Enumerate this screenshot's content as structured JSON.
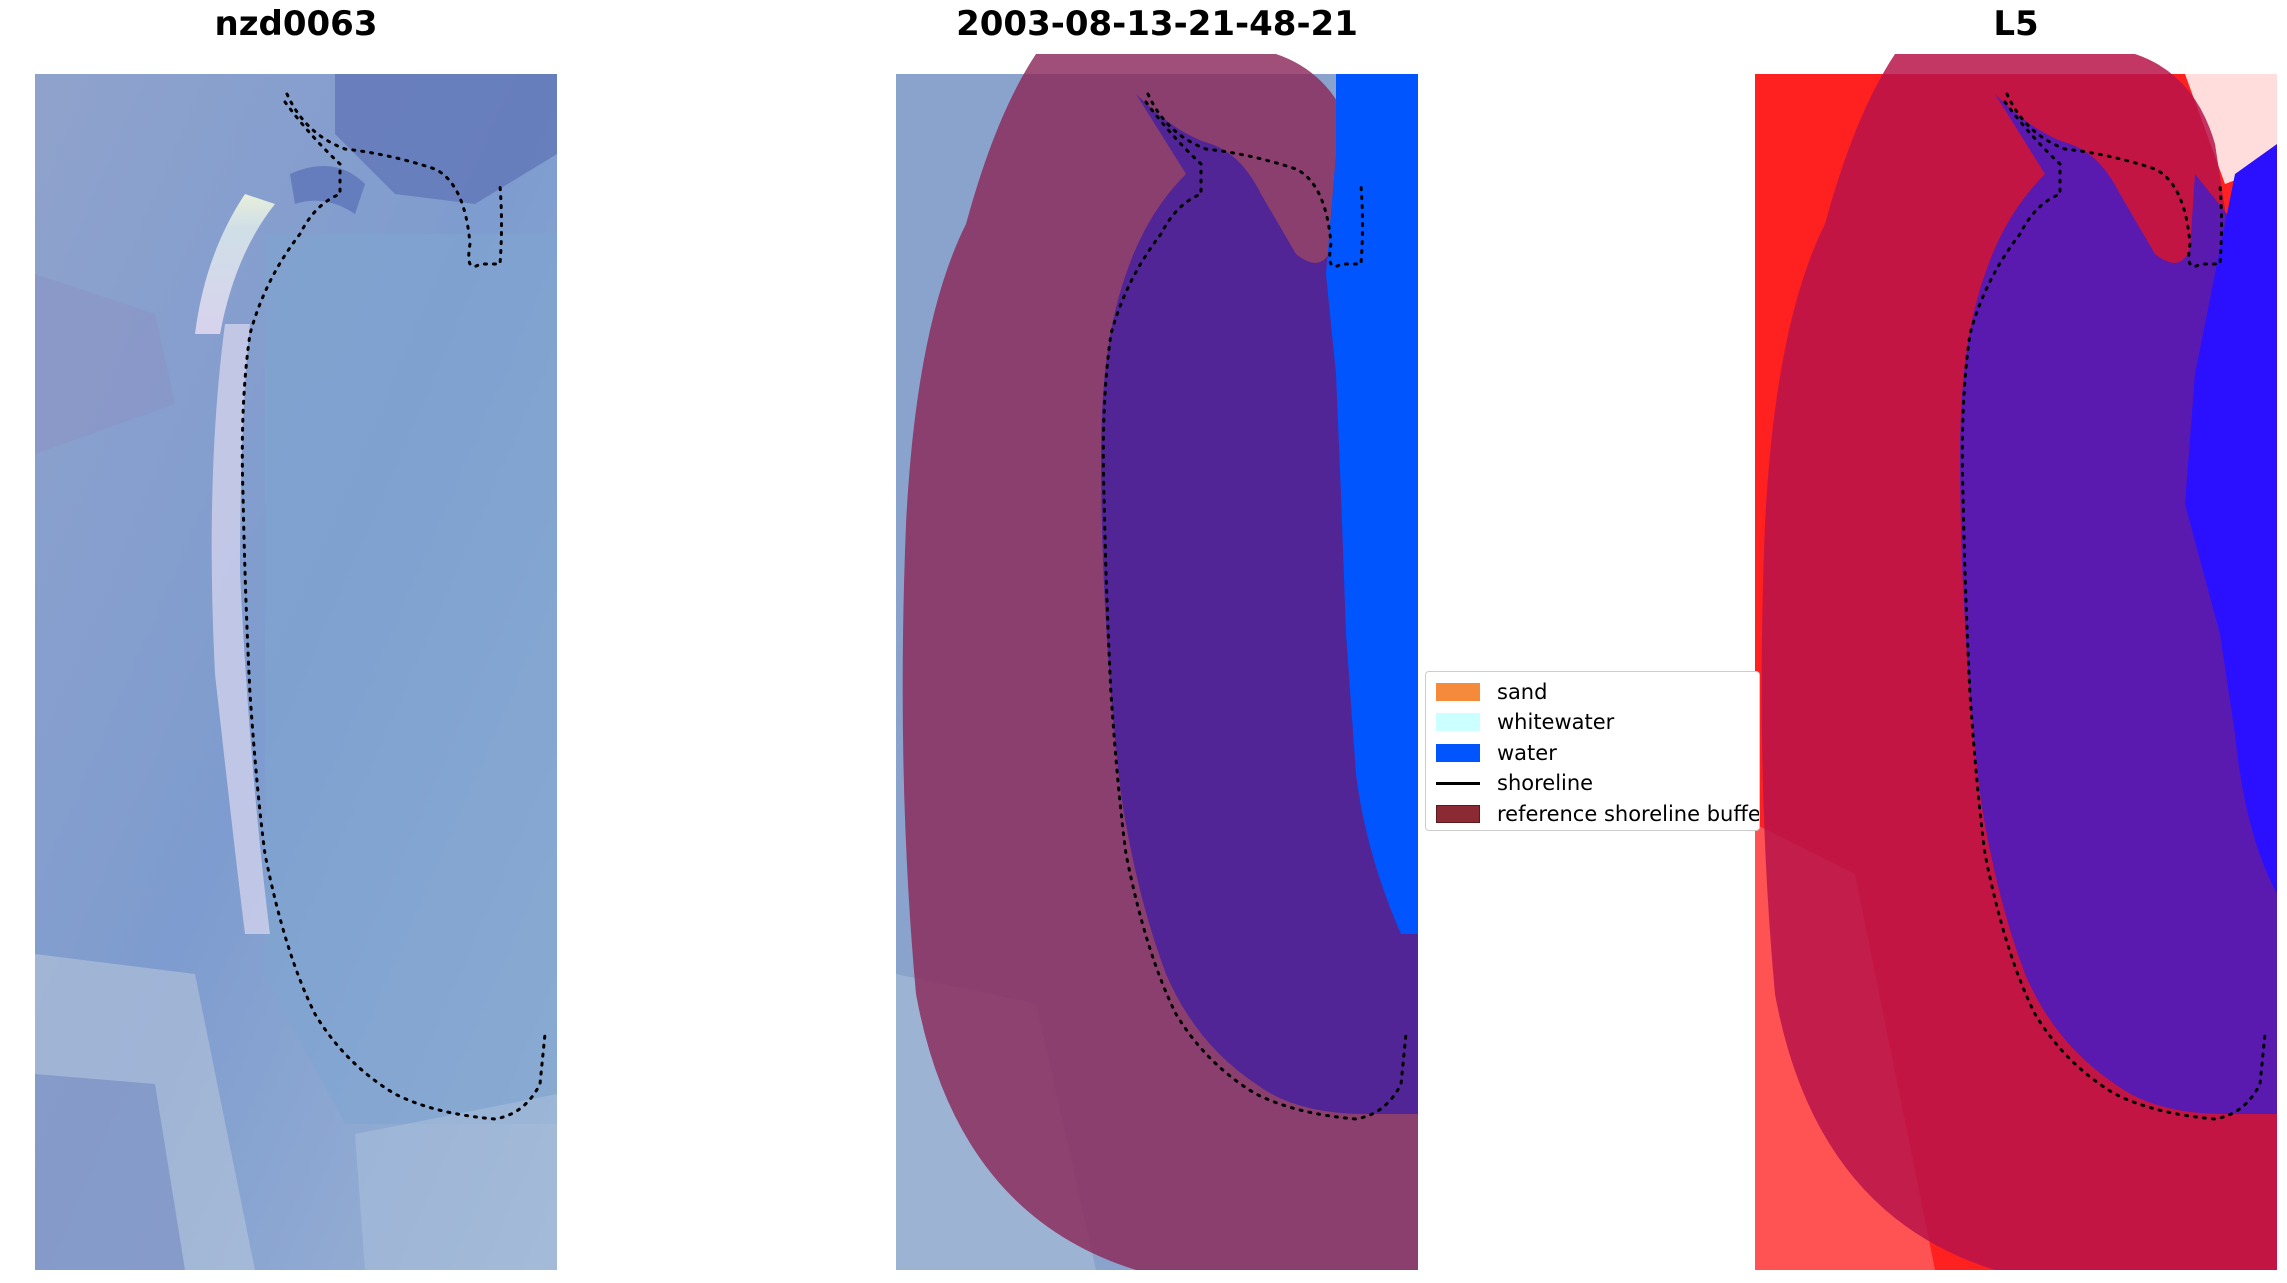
{
  "panels": [
    {
      "title": "nzd0063",
      "content": "rgb-satellite-image"
    },
    {
      "title": "2003-08-13-21-48-21",
      "content": "classified-image"
    },
    {
      "title": "L5",
      "content": "water-index-image"
    }
  ],
  "legend": {
    "items": [
      {
        "label": "sand",
        "color": "#f58a3b",
        "kind": "patch"
      },
      {
        "label": "whitewater",
        "color": "#ccffff",
        "kind": "patch"
      },
      {
        "label": "water",
        "color": "#0055ff",
        "kind": "patch"
      },
      {
        "label": "shoreline",
        "color": "#000000",
        "kind": "line"
      },
      {
        "label": "reference shoreline buffer",
        "color": "#8b2a33",
        "kind": "patch"
      }
    ]
  },
  "colors": {
    "buffer_overlay": "#8b2a5a",
    "lagoon_fill": "#522596",
    "water_class": "#0055ff",
    "index_high": "#ff1010",
    "index_low": "#2a10ff"
  }
}
